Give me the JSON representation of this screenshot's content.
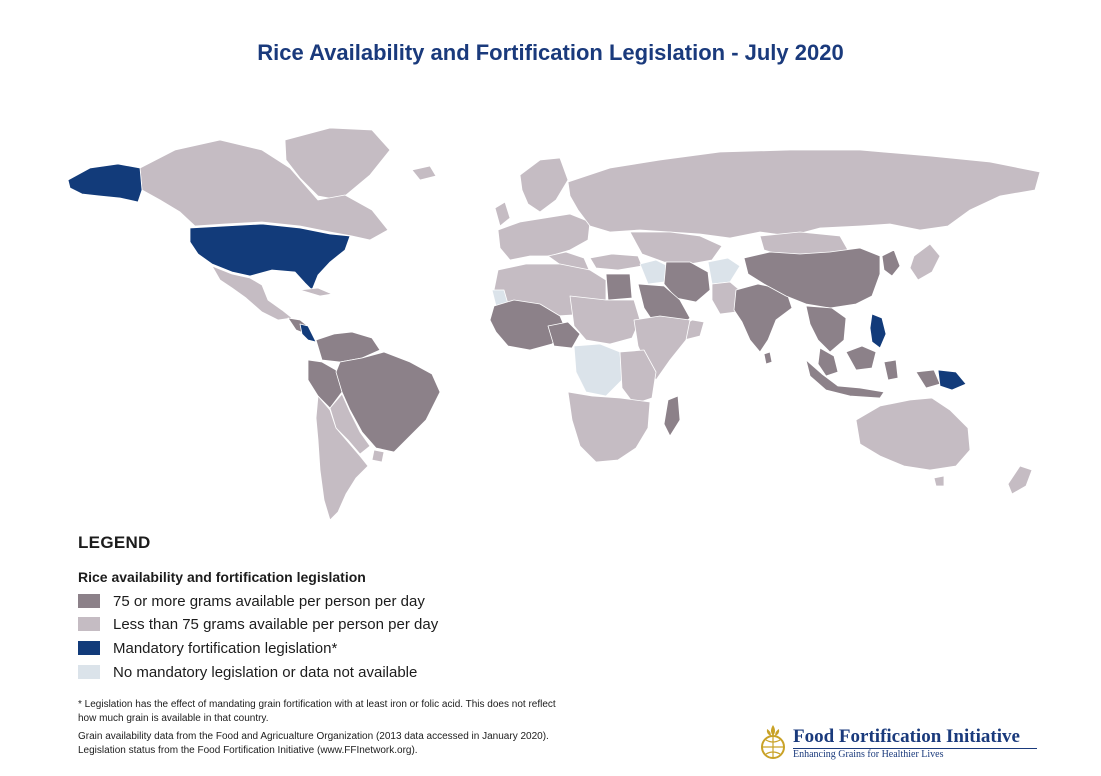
{
  "title": "Rice Availability and Fortification Legislation - July 2020",
  "colors": {
    "high_availability": "#8c8189",
    "low_availability": "#c5bcc3",
    "mandatory": "#123b7a",
    "no_data": "#dbe3ea",
    "brand": "#1a3a7c"
  },
  "legend": {
    "heading": "LEGEND",
    "subtitle": "Rice availability and fortification legislation",
    "items": [
      {
        "label": "75 or more grams available per person per day",
        "color": "#8c8189"
      },
      {
        "label": "Less than 75 grams available per person per day",
        "color": "#c5bcc3"
      },
      {
        "label": "Mandatory fortification legislation*",
        "color": "#123b7a"
      },
      {
        "label": "No mandatory legislation or data not available",
        "color": "#dbe3ea"
      }
    ]
  },
  "notes": [
    "* Legislation has the effect of mandating grain fortification with at least iron or folic acid. This does not reflect",
    "how much grain is available in that country.",
    "Grain availability data from the Food and Agricualture Organization (2013 data accessed in January 2020).",
    "Legislation status from the Food Fortification Initiative (www.FFInetwork.org)."
  ],
  "logo": {
    "name": "Food Fortification Initiative",
    "tagline": "Enhancing Grains for Healthier Lives",
    "icon": "wheat-globe-icon"
  }
}
